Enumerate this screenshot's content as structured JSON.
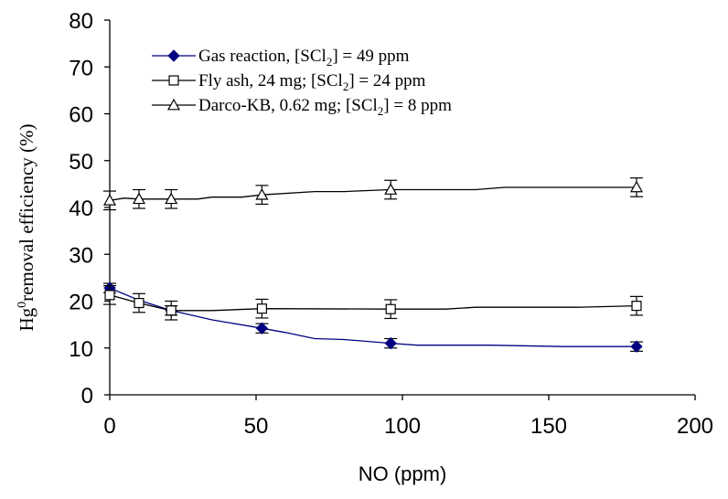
{
  "chart_data": {
    "type": "line",
    "xlabel": "NO (ppm)",
    "ylabel": {
      "base": "Hg",
      "sup": "0",
      "rest": "removal efficiency (%)"
    },
    "xlim": [
      0,
      200
    ],
    "ylim": [
      0,
      80
    ],
    "xticks": [
      0,
      50,
      100,
      150,
      200
    ],
    "yticks": [
      0,
      10,
      20,
      30,
      40,
      50,
      60,
      70,
      80
    ],
    "grid": false,
    "legend_position": "top-left",
    "series": [
      {
        "name": "Gas reaction, [SCl2] = 49 ppm",
        "legend": {
          "pre": "Gas reaction, [SCl",
          "sub": "2",
          "post": "] = 49 ppm"
        },
        "color": "#000080",
        "marker": "filled-diamond",
        "x": [
          0,
          21,
          52,
          96,
          180
        ],
        "y": [
          22.8,
          18.0,
          14.2,
          11.0,
          10.3
        ],
        "err": [
          1.0,
          1.0,
          1.0,
          1.0,
          1.0
        ],
        "curve": [
          [
            0,
            22.8
          ],
          [
            10,
            20.2
          ],
          [
            21,
            18.0
          ],
          [
            35,
            16.0
          ],
          [
            52,
            14.2
          ],
          [
            60,
            13.3
          ],
          [
            70,
            12.0
          ],
          [
            80,
            11.8
          ],
          [
            96,
            11.0
          ],
          [
            105,
            10.6
          ],
          [
            130,
            10.6
          ],
          [
            155,
            10.3
          ],
          [
            180,
            10.3
          ]
        ]
      },
      {
        "name": "Fly ash, 24 mg; [SCl2] = 24 ppm",
        "legend": {
          "pre": "Fly ash, 24 mg; [SCl",
          "sub": "2",
          "post": "] = 24 ppm"
        },
        "color": "#000000",
        "marker": "open-square",
        "x": [
          0,
          10,
          21,
          52,
          96,
          180
        ],
        "y": [
          21.3,
          19.6,
          18.0,
          18.4,
          18.3,
          19.0
        ],
        "err": [
          2.0,
          2.0,
          2.0,
          2.0,
          2.0,
          2.0
        ],
        "curve": [
          [
            0,
            21.3
          ],
          [
            10,
            19.6
          ],
          [
            21,
            18.0
          ],
          [
            35,
            18.0
          ],
          [
            52,
            18.4
          ],
          [
            96,
            18.3
          ],
          [
            115,
            18.3
          ],
          [
            125,
            18.7
          ],
          [
            160,
            18.7
          ],
          [
            180,
            19.0
          ]
        ]
      },
      {
        "name": "Darco-KB, 0.62 mg; [SCl2] = 8 ppm",
        "legend": {
          "pre": "Darco-KB, 0.62 mg; [SCl",
          "sub": "2",
          "post": "] = 8 ppm"
        },
        "color": "#000000",
        "marker": "open-triangle",
        "x": [
          0,
          10,
          21,
          52,
          96,
          180
        ],
        "y": [
          41.5,
          41.8,
          41.8,
          42.7,
          43.8,
          44.3
        ],
        "err": [
          2.0,
          2.0,
          2.0,
          2.0,
          2.0,
          2.0
        ],
        "curve": [
          [
            0,
            41.5
          ],
          [
            5,
            42.0
          ],
          [
            10,
            41.8
          ],
          [
            21,
            41.8
          ],
          [
            30,
            41.8
          ],
          [
            35,
            42.2
          ],
          [
            45,
            42.2
          ],
          [
            52,
            42.7
          ],
          [
            70,
            43.4
          ],
          [
            80,
            43.4
          ],
          [
            96,
            43.8
          ],
          [
            125,
            43.8
          ],
          [
            135,
            44.3
          ],
          [
            180,
            44.3
          ]
        ]
      }
    ]
  }
}
